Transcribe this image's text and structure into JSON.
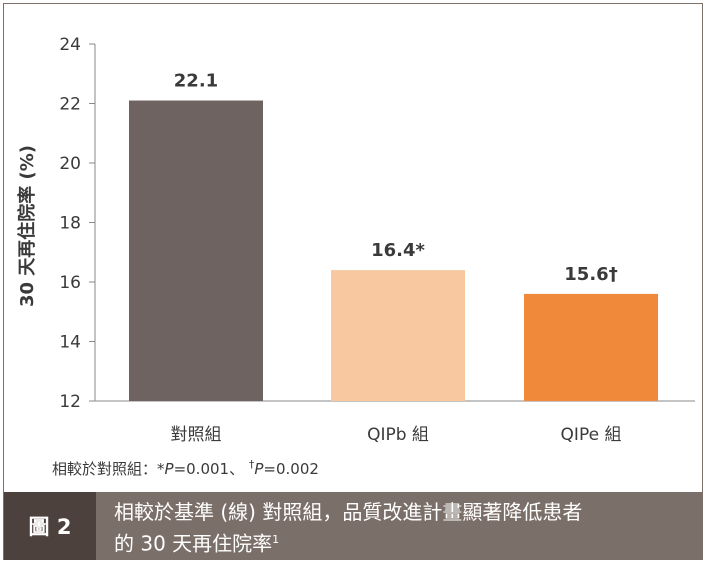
{
  "chart_data": {
    "type": "bar",
    "categories": [
      "對照組",
      "QIPb 組",
      "QIPe 組"
    ],
    "values": [
      22.1,
      16.4,
      15.6
    ],
    "data_labels": [
      "22.1",
      "16.4*",
      "15.6†"
    ],
    "colors": [
      "#6e6360",
      "#f8c9a0",
      "#f0893a"
    ],
    "ylabel": "30 天再住院率 (%)",
    "ylim": [
      12,
      24
    ],
    "yticks": [
      12,
      14,
      16,
      18,
      20,
      22,
      24
    ],
    "grid": false
  },
  "footnote": {
    "prefix": "相較於對照組：",
    "mark1": "*",
    "p_letter": "P",
    "val1": "=0.001、",
    "mark2": "†",
    "val2": "=0.002"
  },
  "caption": {
    "figure_label": "圖 2",
    "line1": "相較於基準 (線) 對照組，品質改進計畫顯著降低患者",
    "line2": "的 30 天再住院率",
    "ref": "1"
  }
}
